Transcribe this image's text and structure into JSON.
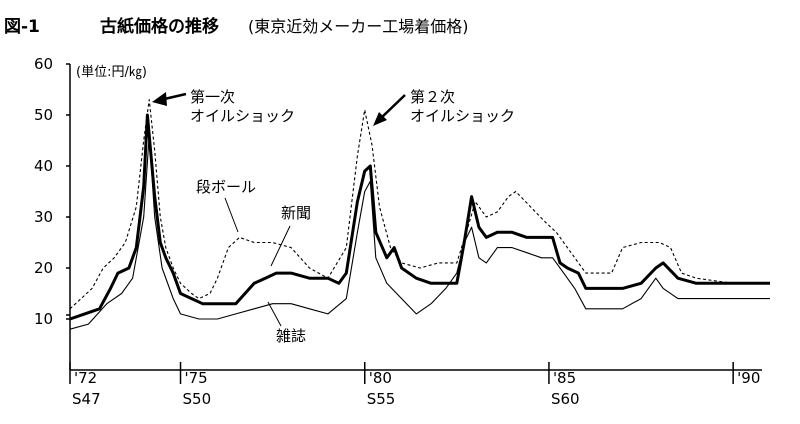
{
  "title": {
    "figure_no": "図-1",
    "main": "古紙価格の推移",
    "sub": "(東京近効メーカー工場着価格)"
  },
  "chart_data": {
    "type": "line",
    "title": "古紙価格の推移(東京近効メーカー工場着価格)",
    "unit": "(単位:円/㎏)",
    "ylim": [
      0,
      60
    ],
    "yticks": [
      "60",
      "50",
      "40",
      "30",
      "20",
      "10"
    ],
    "xlim": [
      1972,
      1991
    ],
    "xticks": [
      {
        "x": 1972,
        "label": "'72",
        "era": "S47"
      },
      {
        "x": 1975,
        "label": "'75",
        "era": "S50"
      },
      {
        "x": 1980,
        "label": "'80",
        "era": "S55"
      },
      {
        "x": 1985,
        "label": "'85",
        "era": "S60"
      },
      {
        "x": 1990,
        "label": "'90",
        "era": ""
      }
    ],
    "series": [
      {
        "name": "新聞",
        "style": "thick",
        "points": [
          [
            1972.0,
            10
          ],
          [
            1972.4,
            11
          ],
          [
            1972.8,
            12
          ],
          [
            1973.1,
            16
          ],
          [
            1973.3,
            19
          ],
          [
            1973.6,
            20
          ],
          [
            1973.8,
            24
          ],
          [
            1974.0,
            36
          ],
          [
            1974.1,
            50
          ],
          [
            1974.3,
            34
          ],
          [
            1974.45,
            25
          ],
          [
            1974.6,
            22
          ],
          [
            1974.8,
            19
          ],
          [
            1975.0,
            15
          ],
          [
            1975.3,
            14
          ],
          [
            1975.6,
            13
          ],
          [
            1976.0,
            13
          ],
          [
            1976.5,
            13
          ],
          [
            1977.0,
            17
          ],
          [
            1977.3,
            18
          ],
          [
            1977.6,
            19
          ],
          [
            1978.0,
            19
          ],
          [
            1978.5,
            18
          ],
          [
            1979.0,
            18
          ],
          [
            1979.3,
            17
          ],
          [
            1979.5,
            19
          ],
          [
            1979.8,
            33
          ],
          [
            1980.0,
            39
          ],
          [
            1980.15,
            40
          ],
          [
            1980.3,
            27
          ],
          [
            1980.6,
            22
          ],
          [
            1980.8,
            24
          ],
          [
            1981.0,
            20
          ],
          [
            1981.4,
            18
          ],
          [
            1981.8,
            17
          ],
          [
            1982.2,
            17
          ],
          [
            1982.5,
            17
          ],
          [
            1982.7,
            25
          ],
          [
            1982.9,
            34
          ],
          [
            1983.1,
            28
          ],
          [
            1983.3,
            26
          ],
          [
            1983.6,
            27
          ],
          [
            1984.0,
            27
          ],
          [
            1984.4,
            26
          ],
          [
            1984.8,
            26
          ],
          [
            1985.1,
            26
          ],
          [
            1985.3,
            21
          ],
          [
            1985.5,
            20
          ],
          [
            1985.8,
            19
          ],
          [
            1986.0,
            16
          ],
          [
            1986.5,
            16
          ],
          [
            1987.0,
            16
          ],
          [
            1987.5,
            17
          ],
          [
            1987.9,
            20
          ],
          [
            1988.1,
            21
          ],
          [
            1988.5,
            18
          ],
          [
            1989.0,
            17
          ],
          [
            1989.5,
            17
          ],
          [
            1990.0,
            17
          ],
          [
            1991.0,
            17
          ]
        ]
      },
      {
        "name": "段ボール",
        "style": "dashed",
        "points": [
          [
            1972.0,
            12
          ],
          [
            1972.3,
            14
          ],
          [
            1972.6,
            16
          ],
          [
            1972.9,
            20
          ],
          [
            1973.2,
            22
          ],
          [
            1973.5,
            25
          ],
          [
            1973.8,
            32
          ],
          [
            1974.0,
            45
          ],
          [
            1974.15,
            53
          ],
          [
            1974.3,
            43
          ],
          [
            1974.45,
            30
          ],
          [
            1974.6,
            24
          ],
          [
            1974.8,
            20
          ],
          [
            1975.0,
            17
          ],
          [
            1975.3,
            15
          ],
          [
            1975.5,
            14
          ],
          [
            1975.8,
            15
          ],
          [
            1976.0,
            18
          ],
          [
            1976.3,
            24
          ],
          [
            1976.6,
            26
          ],
          [
            1977.0,
            25
          ],
          [
            1977.5,
            25
          ],
          [
            1978.0,
            24
          ],
          [
            1978.5,
            20
          ],
          [
            1979.0,
            18
          ],
          [
            1979.5,
            24
          ],
          [
            1979.8,
            42
          ],
          [
            1980.0,
            51
          ],
          [
            1980.2,
            44
          ],
          [
            1980.4,
            32
          ],
          [
            1980.7,
            24
          ],
          [
            1981.0,
            21
          ],
          [
            1981.5,
            20
          ],
          [
            1982.0,
            21
          ],
          [
            1982.5,
            21
          ],
          [
            1982.8,
            28
          ],
          [
            1983.0,
            33
          ],
          [
            1983.3,
            30
          ],
          [
            1983.6,
            31
          ],
          [
            1983.9,
            34
          ],
          [
            1984.1,
            35
          ],
          [
            1984.5,
            32
          ],
          [
            1984.9,
            29
          ],
          [
            1985.2,
            27
          ],
          [
            1985.5,
            24
          ],
          [
            1986.0,
            19
          ],
          [
            1986.4,
            19
          ],
          [
            1986.7,
            19
          ],
          [
            1987.0,
            24
          ],
          [
            1987.5,
            25
          ],
          [
            1988.0,
            25
          ],
          [
            1988.3,
            24
          ],
          [
            1988.6,
            19
          ],
          [
            1989.0,
            18
          ],
          [
            1990.0,
            17
          ],
          [
            1991.0,
            17
          ]
        ]
      },
      {
        "name": "雑誌",
        "style": "thin",
        "points": [
          [
            1972.0,
            8
          ],
          [
            1972.5,
            9
          ],
          [
            1973.0,
            13
          ],
          [
            1973.4,
            15
          ],
          [
            1973.7,
            18
          ],
          [
            1974.0,
            30
          ],
          [
            1974.15,
            46
          ],
          [
            1974.3,
            30
          ],
          [
            1974.5,
            20
          ],
          [
            1974.8,
            14
          ],
          [
            1975.0,
            11
          ],
          [
            1975.5,
            10
          ],
          [
            1976.0,
            10
          ],
          [
            1976.5,
            11
          ],
          [
            1977.0,
            12
          ],
          [
            1977.5,
            13
          ],
          [
            1978.0,
            13
          ],
          [
            1978.5,
            12
          ],
          [
            1979.0,
            11
          ],
          [
            1979.5,
            14
          ],
          [
            1979.8,
            27
          ],
          [
            1980.0,
            35
          ],
          [
            1980.15,
            37
          ],
          [
            1980.3,
            22
          ],
          [
            1980.6,
            17
          ],
          [
            1981.0,
            14
          ],
          [
            1981.4,
            11
          ],
          [
            1981.8,
            13
          ],
          [
            1982.2,
            16
          ],
          [
            1982.5,
            19
          ],
          [
            1982.7,
            25
          ],
          [
            1982.9,
            28
          ],
          [
            1983.1,
            22
          ],
          [
            1983.3,
            21
          ],
          [
            1983.6,
            24
          ],
          [
            1984.0,
            24
          ],
          [
            1984.4,
            23
          ],
          [
            1984.8,
            22
          ],
          [
            1985.1,
            22
          ],
          [
            1985.4,
            19
          ],
          [
            1985.7,
            16
          ],
          [
            1986.0,
            12
          ],
          [
            1986.5,
            12
          ],
          [
            1987.0,
            12
          ],
          [
            1987.5,
            14
          ],
          [
            1987.9,
            18
          ],
          [
            1988.1,
            16
          ],
          [
            1988.5,
            14
          ],
          [
            1989.0,
            14
          ],
          [
            1990.0,
            14
          ],
          [
            1991.0,
            14
          ]
        ]
      }
    ],
    "annotations": [
      {
        "id": "shock1",
        "lines": [
          "第一次",
          "オイルショック"
        ]
      },
      {
        "id": "shock2",
        "lines": [
          "第２次",
          "オイルショック"
        ]
      },
      {
        "id": "label-cardboard",
        "lines": [
          "段ボール"
        ]
      },
      {
        "id": "label-newspaper",
        "lines": [
          "新聞"
        ]
      },
      {
        "id": "label-magazine",
        "lines": [
          "雑誌"
        ]
      }
    ]
  }
}
